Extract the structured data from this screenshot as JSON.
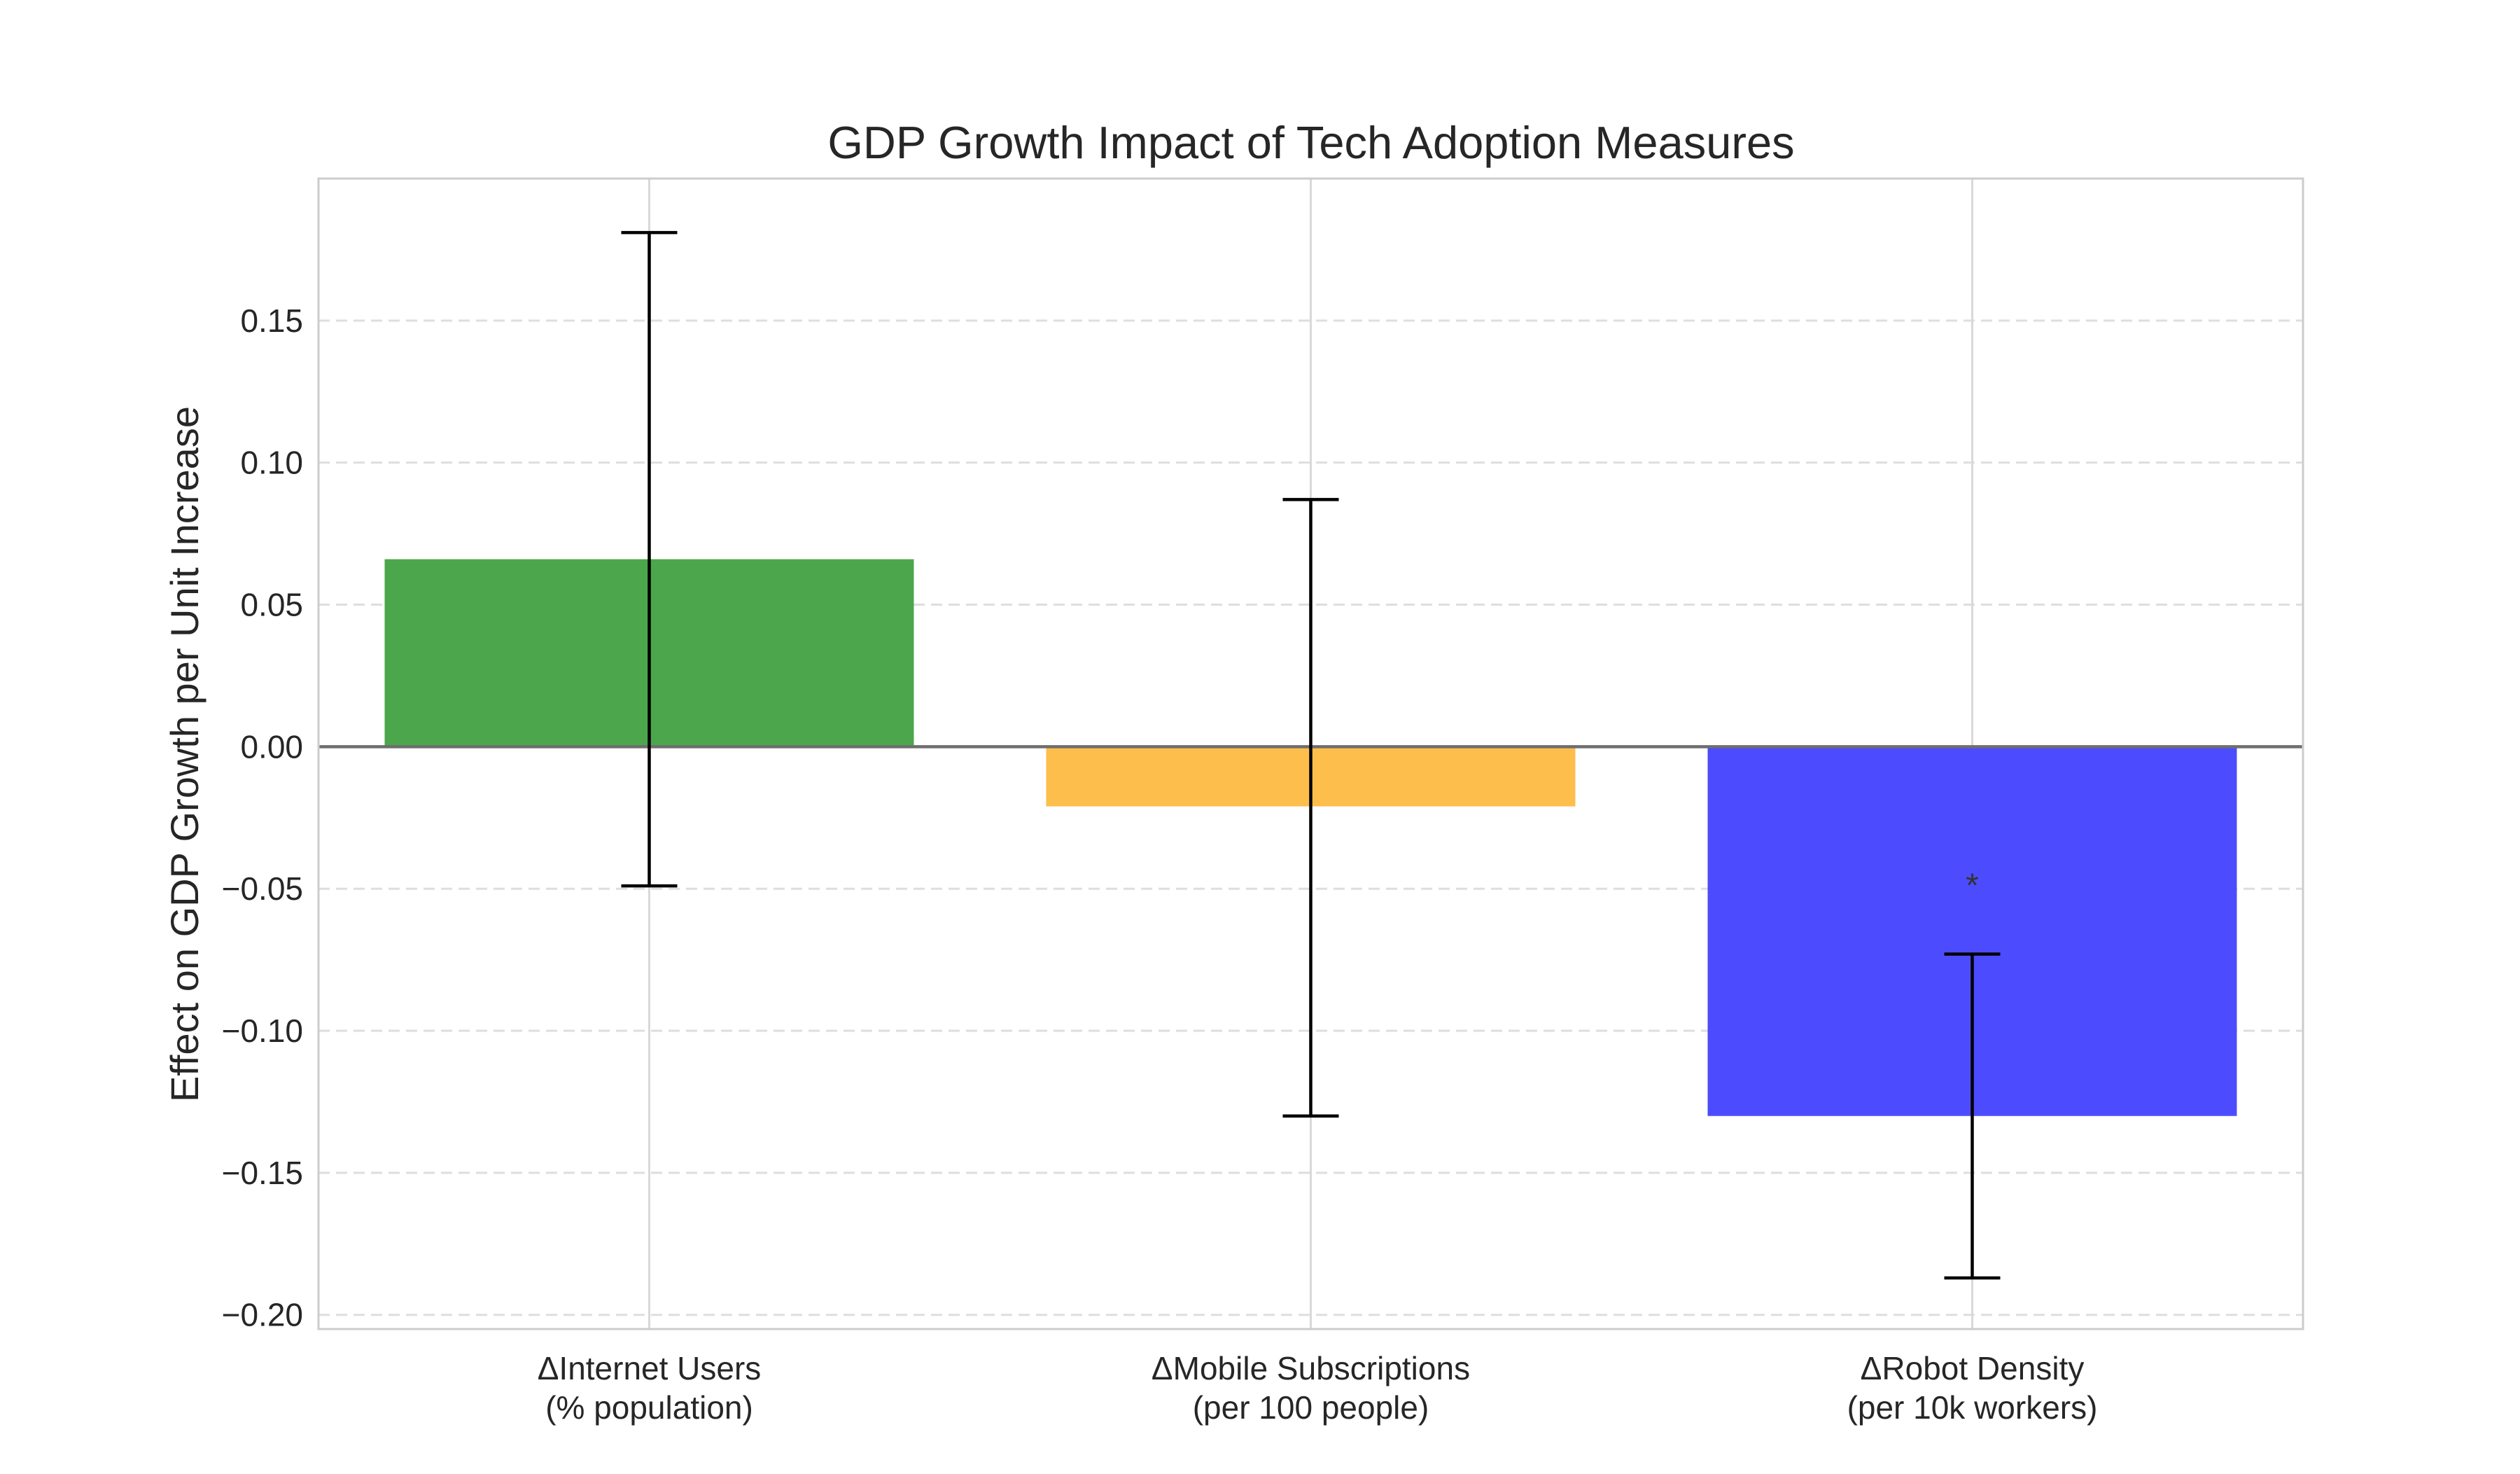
{
  "chart_data": {
    "type": "bar",
    "title": "GDP Growth Impact of Tech Adoption Measures",
    "xlabel": "",
    "ylabel": "Effect on GDP Growth per Unit Increase",
    "categories": [
      [
        "ΔInternet Users",
        "(% population)"
      ],
      [
        "ΔMobile Subscriptions",
        "(per 100 people)"
      ],
      [
        "ΔRobot Density",
        "(per 10k workers)"
      ]
    ],
    "values": [
      0.066,
      -0.021,
      -0.13
    ],
    "error_low": [
      -0.049,
      -0.13,
      -0.187
    ],
    "error_high": [
      0.181,
      0.087,
      -0.073
    ],
    "bar_colors": [
      "#4ca64c",
      "#fdbe4c",
      "#4c4cfe"
    ],
    "significance_markers": [
      "",
      "",
      "*"
    ],
    "ylim": [
      -0.205,
      0.2
    ],
    "yticks": [
      0.15,
      0.1,
      0.05,
      0.0,
      -0.05,
      -0.1,
      -0.15,
      -0.2
    ],
    "ytick_labels": [
      "0.15",
      "0.10",
      "0.05",
      "0.00",
      "−0.05",
      "−0.10",
      "−0.15",
      "−0.20"
    ],
    "grid": true,
    "zero_line": true
  }
}
